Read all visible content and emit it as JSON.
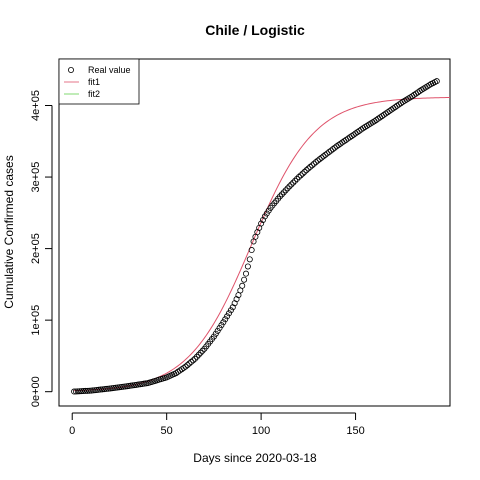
{
  "chart_data": {
    "type": "scatter",
    "title": "Chile / Logistic",
    "xlabel": "Days since 2020-03-18",
    "ylabel": "Cumulative Confirmed cases",
    "xlim": [
      -7,
      200
    ],
    "ylim": [
      -20000,
      465000
    ],
    "x_ticks": [
      0,
      50,
      100,
      150
    ],
    "x_tick_labels": [
      "0",
      "50",
      "100",
      "150"
    ],
    "y_ticks": [
      0,
      100000,
      200000,
      300000,
      400000
    ],
    "y_tick_labels": [
      "0e+00",
      "1e+05",
      "2e+05",
      "3e+05",
      "4e+05"
    ],
    "grid": false,
    "legend": {
      "placement": "top-left",
      "entries": [
        "Real value",
        "fit1",
        "fit2"
      ]
    },
    "series": [
      {
        "name": "Real value",
        "kind": "points",
        "marker": "open-circle",
        "color": "#000000",
        "points": [
          [
            1,
            200
          ],
          [
            10,
            1500
          ],
          [
            20,
            4500
          ],
          [
            30,
            8000
          ],
          [
            40,
            12000
          ],
          [
            50,
            20000
          ],
          [
            55,
            26000
          ],
          [
            60,
            35000
          ],
          [
            65,
            46000
          ],
          [
            70,
            60000
          ],
          [
            75,
            77000
          ],
          [
            80,
            97000
          ],
          [
            85,
            118000
          ],
          [
            88,
            135000
          ],
          [
            90,
            148000
          ],
          [
            92,
            165000
          ],
          [
            94,
            185000
          ],
          [
            95,
            198000
          ],
          [
            96,
            210000
          ],
          [
            98,
            223000
          ],
          [
            100,
            235000
          ],
          [
            102,
            245000
          ],
          [
            105,
            257000
          ],
          [
            110,
            273000
          ],
          [
            115,
            287000
          ],
          [
            120,
            300000
          ],
          [
            125,
            312000
          ],
          [
            130,
            323000
          ],
          [
            135,
            333000
          ],
          [
            140,
            343000
          ],
          [
            145,
            352000
          ],
          [
            150,
            361000
          ],
          [
            155,
            370000
          ],
          [
            160,
            378000
          ],
          [
            165,
            387000
          ],
          [
            170,
            396000
          ],
          [
            175,
            405000
          ],
          [
            180,
            413000
          ],
          [
            185,
            422000
          ],
          [
            190,
            430000
          ],
          [
            193,
            434000
          ]
        ]
      },
      {
        "name": "fit1",
        "kind": "line",
        "color": "#df536b",
        "model": "logistic",
        "K": 412000,
        "r": 0.06,
        "t0": 95
      },
      {
        "name": "fit2",
        "kind": "line",
        "color": "#61d04f",
        "model": "none"
      }
    ]
  }
}
